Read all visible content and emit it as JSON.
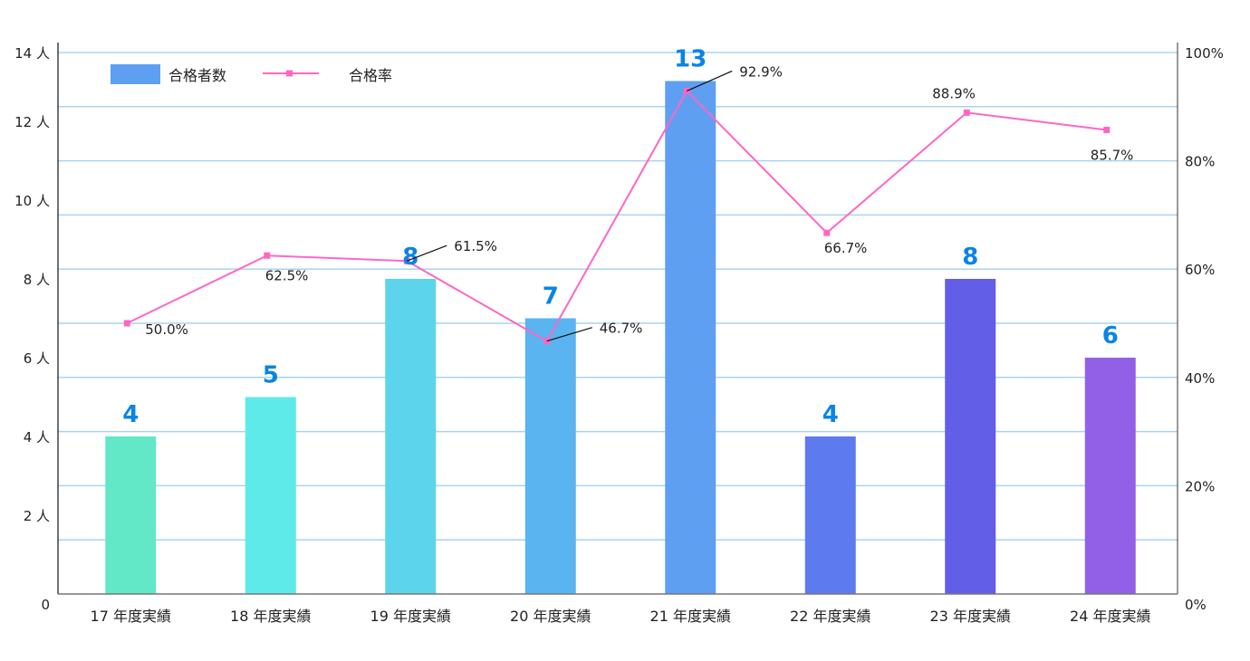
{
  "chart_data": {
    "type": "bar+line",
    "title": "",
    "categories": [
      "17 年度実績",
      "18 年度実績",
      "19 年度実績",
      "20 年度実績",
      "21 年度実績",
      "22 年度実績",
      "23 年度実績",
      "24 年度実績"
    ],
    "series": [
      {
        "name": "合格者数",
        "type": "bar",
        "axis": "left",
        "values": [
          4,
          5,
          8,
          7,
          13,
          4,
          8,
          6
        ],
        "labels": [
          "4",
          "5",
          "8",
          "7",
          "13",
          "4",
          "8",
          "6"
        ],
        "colors": [
          "#62e8c6",
          "#5eeae8",
          "#5cd4ec",
          "#5ab4f0",
          "#5e9ff2",
          "#5d7aef",
          "#625ee8",
          "#9260e6"
        ],
        "legend_color": "#5e9ff2"
      },
      {
        "name": "合格率",
        "type": "line",
        "axis": "right",
        "values": [
          50.0,
          62.5,
          61.5,
          46.7,
          92.9,
          66.7,
          88.9,
          85.7
        ],
        "labels": [
          "50.0%",
          "62.5%",
          "61.5%",
          "46.7%",
          "92.9%",
          "66.7%",
          "88.9%",
          "85.7%"
        ],
        "color": "#ff66c4"
      }
    ],
    "left_axis": {
      "range": [
        0,
        14
      ],
      "ticks": [
        {
          "value": 0,
          "label": "0"
        },
        {
          "value": 2,
          "label": "2 人"
        },
        {
          "value": 4,
          "label": "4 人"
        },
        {
          "value": 6,
          "label": "6 人"
        },
        {
          "value": 8,
          "label": "8 人"
        },
        {
          "value": 10,
          "label": "10 人"
        },
        {
          "value": 12,
          "label": "12 人"
        },
        {
          "value": 14,
          "label": "14 人"
        }
      ]
    },
    "right_axis": {
      "range": [
        0,
        100
      ],
      "ticks": [
        {
          "value": 0,
          "label": "0%"
        },
        {
          "value": 20,
          "label": "20%"
        },
        {
          "value": 40,
          "label": "40%"
        },
        {
          "value": 60,
          "label": "60%"
        },
        {
          "value": 80,
          "label": "80%"
        },
        {
          "value": 100,
          "label": "100%"
        }
      ]
    },
    "grid": {
      "on": true,
      "step_percent": 10,
      "color": "#a9d3f2"
    },
    "legend": {
      "position": "top-left",
      "entries": [
        "合格者数",
        "合格率"
      ]
    },
    "xlabel": "",
    "ylabel": "",
    "data_label_color": "#0a84e6"
  }
}
